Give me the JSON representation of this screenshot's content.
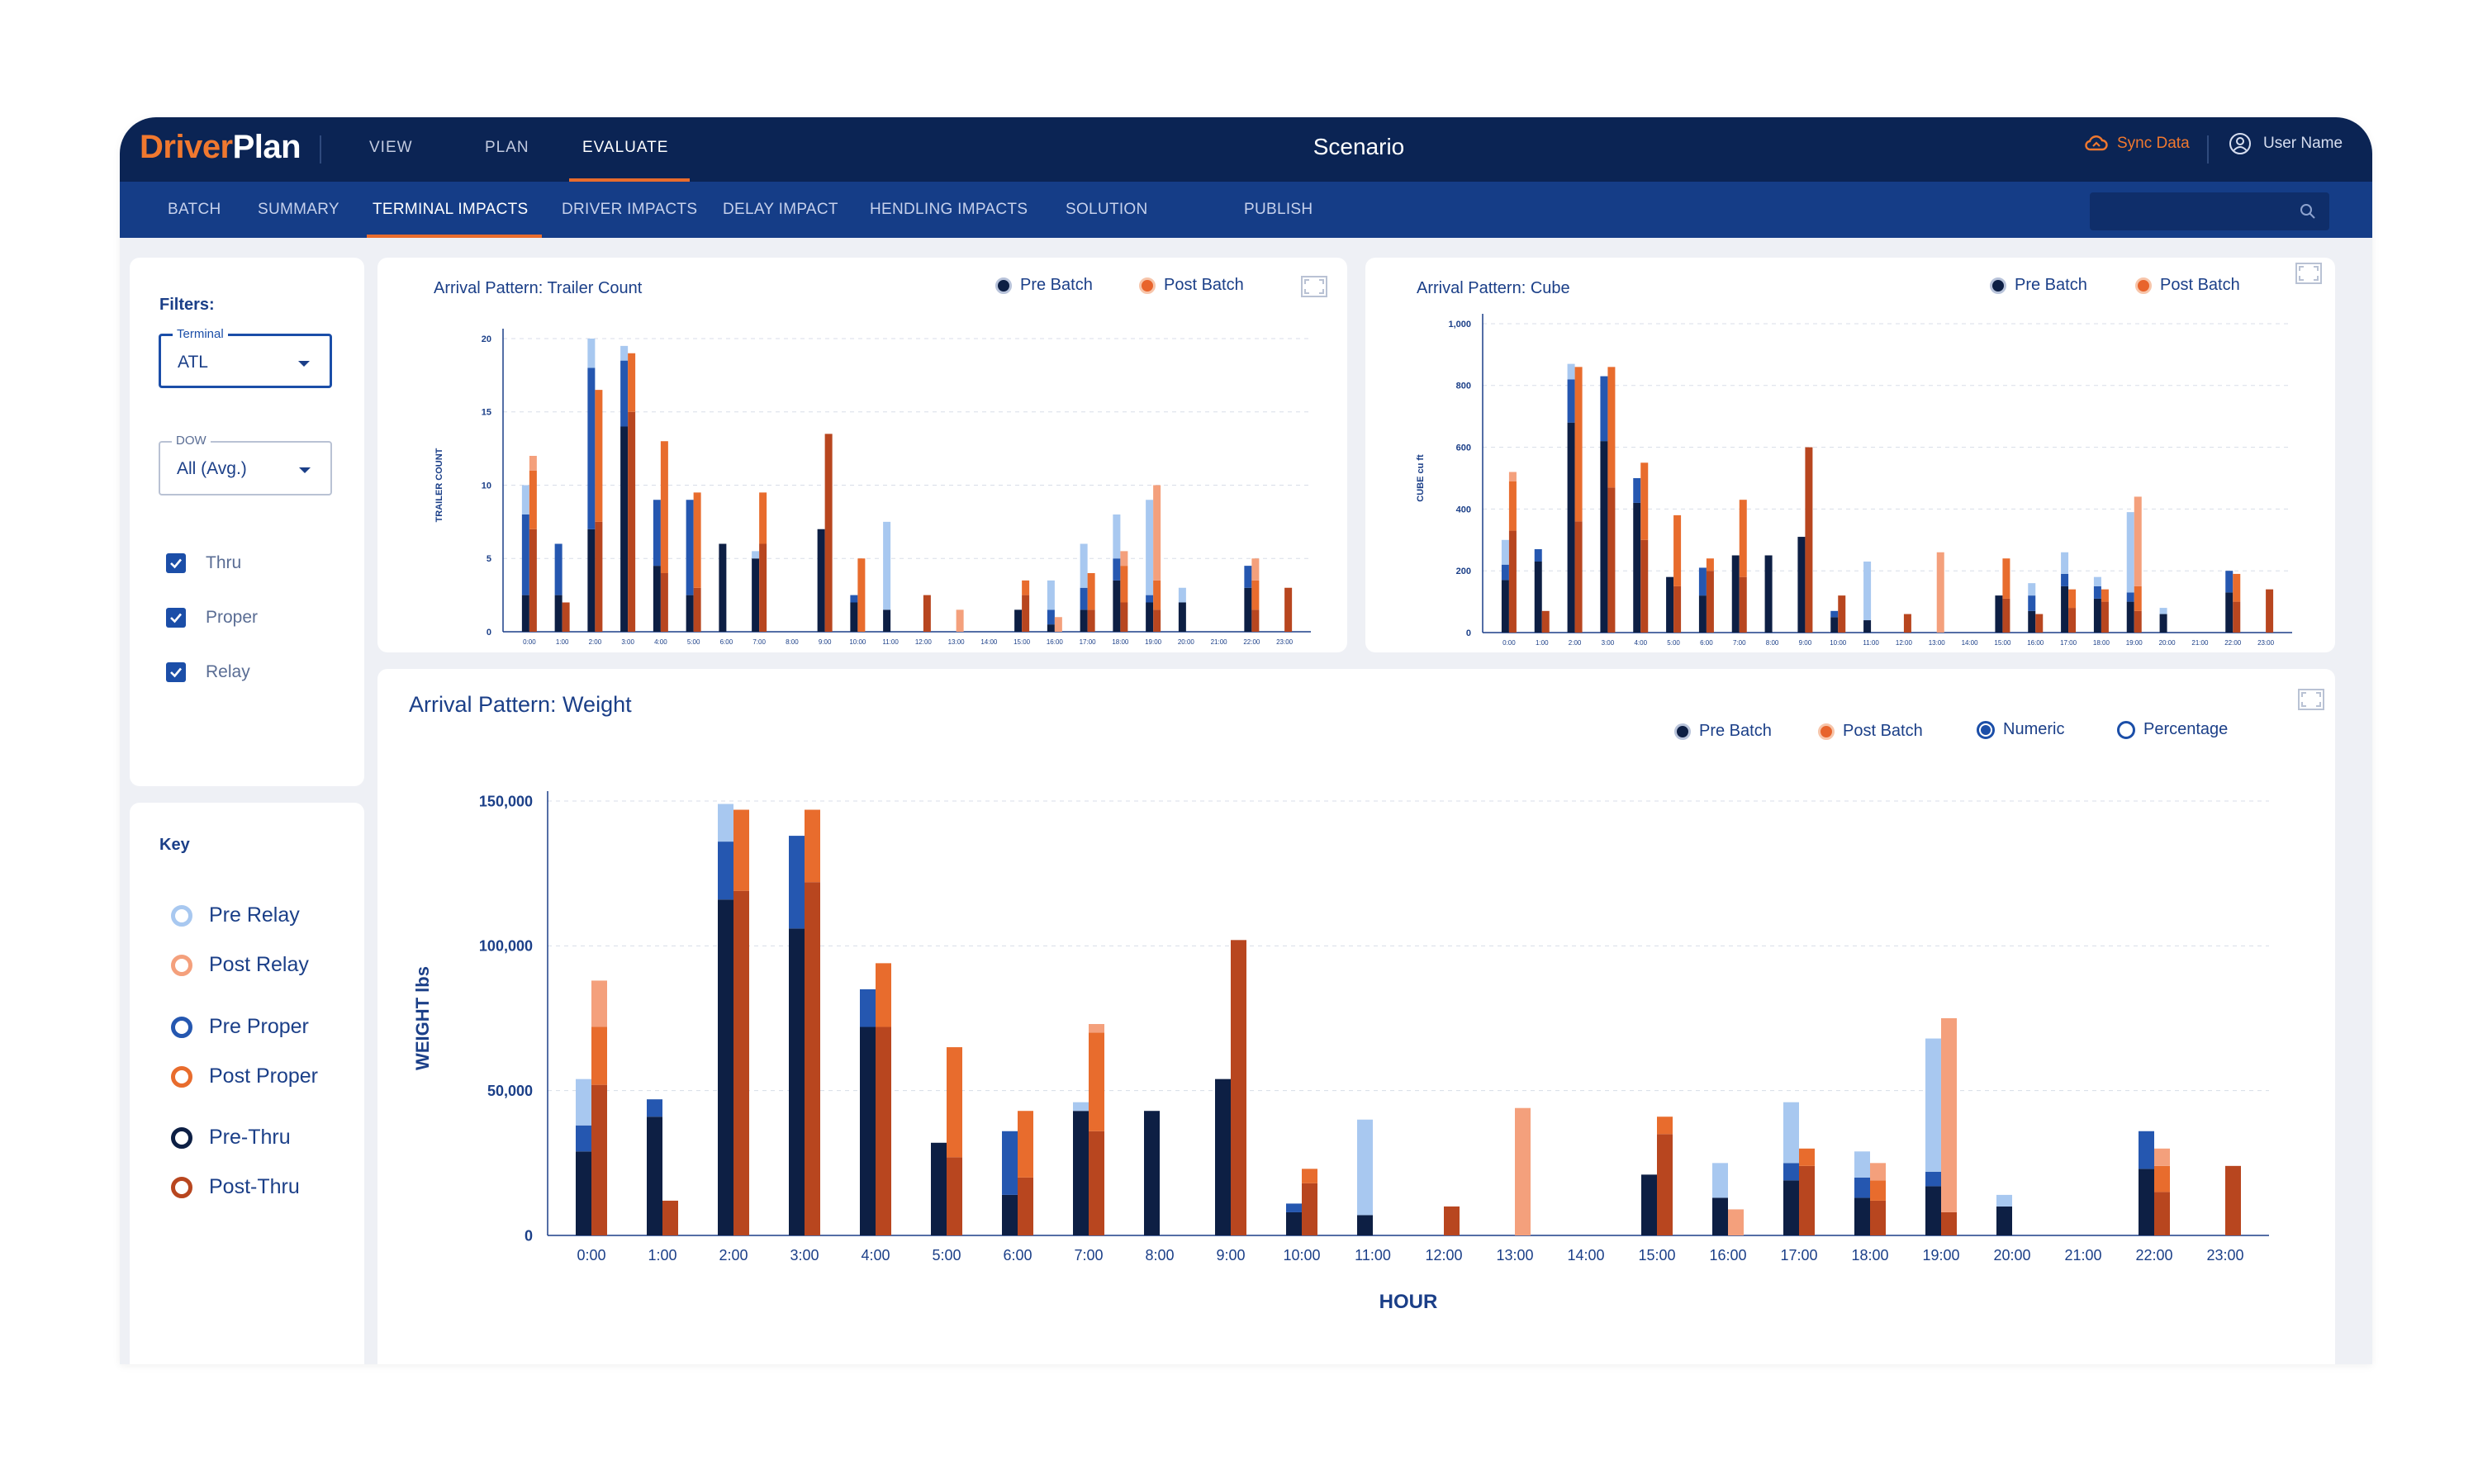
{
  "app": {
    "logo_part1": "Driver",
    "logo_part2": "Plan",
    "top_nav": [
      {
        "label": "VIEW"
      },
      {
        "label": "PLAN"
      },
      {
        "label": "EVALUATE"
      }
    ],
    "scenario_title": "Scenario",
    "sync_label": "Sync Data",
    "user_label": "User Name"
  },
  "sub_nav": [
    {
      "label": "BATCH"
    },
    {
      "label": "SUMMARY"
    },
    {
      "label": "TERMINAL IMPACTS"
    },
    {
      "label": "DRIVER IMPACTS"
    },
    {
      "label": "DELAY IMPACT"
    },
    {
      "label": "HENDLING IMPACTS"
    },
    {
      "label": "SOLUTION"
    },
    {
      "label": "PUBLISH"
    }
  ],
  "filters": {
    "title": "Filters:",
    "terminal": {
      "label": "Terminal",
      "value": "ATL"
    },
    "dow": {
      "label": "DOW",
      "value": "All (Avg.)"
    },
    "checkboxes": [
      {
        "label": "Thru",
        "checked": true
      },
      {
        "label": "Proper",
        "checked": true
      },
      {
        "label": "Relay",
        "checked": true
      }
    ]
  },
  "key": {
    "title": "Key",
    "items": [
      {
        "label": "Pre Relay",
        "color": "#a8c8f0"
      },
      {
        "label": "Post Relay",
        "color": "#f4a07c"
      },
      {
        "label": "Pre Proper",
        "color": "#2557b0"
      },
      {
        "label": "Post Proper",
        "color": "#e86c2d"
      },
      {
        "label": "Pre-Thru",
        "color": "#0d1f44"
      },
      {
        "label": "Post-Thru",
        "color": "#b8461f"
      }
    ]
  },
  "colors": {
    "pre_thru": "#0d1f44",
    "pre_proper": "#2557b0",
    "pre_relay": "#a8c8f0",
    "post_thru": "#b8461f",
    "post_proper": "#e86c2d",
    "post_relay": "#f4a07c",
    "accent": "#e86c2d",
    "nav_dark": "#0b2454",
    "nav_blue": "#153d87"
  },
  "legend": {
    "pre_batch": "Pre Batch",
    "post_batch": "Post Batch",
    "numeric": "Numeric",
    "percentage": "Percentage",
    "selected_mode": "Numeric"
  },
  "chart_data": [
    {
      "id": "trailer",
      "type": "bar",
      "title": "Arrival Pattern: Trailer Count",
      "ylabel": "TRAILER COUNT",
      "xlabel": "",
      "ylim": [
        0,
        20
      ],
      "yticks": [
        0,
        5,
        10,
        15,
        20
      ],
      "grid": true,
      "legend_placement": "top-right",
      "categories": [
        "0:00",
        "1:00",
        "2:00",
        "3:00",
        "4:00",
        "5:00",
        "6:00",
        "7:00",
        "8:00",
        "9:00",
        "10:00",
        "11:00",
        "12:00",
        "13:00",
        "14:00",
        "15:00",
        "16:00",
        "17:00",
        "18:00",
        "19:00",
        "20:00",
        "21:00",
        "22:00",
        "23:00"
      ],
      "series": [
        {
          "name": "Pre-Thru",
          "values": [
            2.5,
            2.5,
            7,
            14,
            4.5,
            2.5,
            6,
            5,
            0,
            7,
            2,
            1.5,
            0,
            0,
            0,
            1.5,
            0.5,
            1.5,
            3.5,
            2,
            2,
            0,
            3,
            0
          ]
        },
        {
          "name": "Pre Proper",
          "values": [
            5.5,
            3.5,
            11,
            4.5,
            4.5,
            6.5,
            0,
            0,
            0,
            0,
            0.5,
            0,
            0,
            0,
            0,
            0,
            1,
            1.5,
            1.5,
            0.5,
            0,
            0,
            1.5,
            0
          ]
        },
        {
          "name": "Pre Relay",
          "values": [
            2,
            0,
            2,
            1,
            0,
            0,
            0,
            0.5,
            0,
            0,
            0,
            6,
            0,
            0,
            0,
            0,
            2,
            3,
            3,
            6.5,
            1,
            0,
            0,
            0
          ]
        },
        {
          "name": "Post-Thru",
          "values": [
            7,
            2,
            7.5,
            15,
            4,
            3,
            0,
            6,
            0,
            13.5,
            0,
            0,
            2.5,
            0,
            0,
            2.5,
            0,
            1.5,
            2,
            1.5,
            0,
            0,
            1.5,
            3
          ]
        },
        {
          "name": "Post Proper",
          "values": [
            4,
            0,
            9,
            4,
            9,
            6.5,
            0,
            3.5,
            0,
            0,
            5,
            0,
            0,
            0,
            0,
            1,
            0,
            2.5,
            2.5,
            2,
            0,
            0,
            2,
            0
          ]
        },
        {
          "name": "Post Relay",
          "values": [
            1,
            0,
            0,
            0,
            0,
            0,
            0,
            0,
            0,
            0,
            0,
            0,
            0,
            1.5,
            0,
            0,
            1,
            0,
            1,
            6.5,
            0,
            0,
            1.5,
            0
          ]
        }
      ]
    },
    {
      "id": "cube",
      "type": "bar",
      "title": "Arrival Pattern: Cube",
      "ylabel": "CUBE cu ft",
      "xlabel": "",
      "ylim": [
        0,
        1000
      ],
      "yticks": [
        0,
        200,
        400,
        600,
        800,
        1000
      ],
      "ytick_labels": [
        "0",
        "200",
        "400",
        "600",
        "800",
        "1,000"
      ],
      "grid": true,
      "legend_placement": "top-right",
      "categories": [
        "0:00",
        "1:00",
        "2:00",
        "3:00",
        "4:00",
        "5:00",
        "6:00",
        "7:00",
        "8:00",
        "9:00",
        "10:00",
        "11:00",
        "12:00",
        "13:00",
        "14:00",
        "15:00",
        "16:00",
        "17:00",
        "18:00",
        "19:00",
        "20:00",
        "21:00",
        "22:00",
        "23:00"
      ],
      "series": [
        {
          "name": "Pre-Thru",
          "values": [
            170,
            230,
            680,
            620,
            420,
            180,
            120,
            250,
            250,
            310,
            50,
            40,
            0,
            0,
            0,
            120,
            70,
            150,
            110,
            100,
            60,
            0,
            130,
            0
          ]
        },
        {
          "name": "Pre Proper",
          "values": [
            50,
            40,
            140,
            210,
            80,
            0,
            90,
            0,
            0,
            0,
            20,
            0,
            0,
            0,
            0,
            0,
            50,
            40,
            40,
            30,
            0,
            0,
            70,
            0
          ]
        },
        {
          "name": "Pre Relay",
          "values": [
            80,
            0,
            50,
            0,
            0,
            0,
            0,
            0,
            0,
            0,
            0,
            190,
            0,
            0,
            0,
            0,
            40,
            70,
            30,
            260,
            20,
            0,
            0,
            0
          ]
        },
        {
          "name": "Post-Thru",
          "values": [
            330,
            70,
            360,
            470,
            300,
            150,
            200,
            180,
            0,
            600,
            120,
            0,
            60,
            0,
            0,
            110,
            60,
            80,
            100,
            70,
            0,
            0,
            100,
            140
          ]
        },
        {
          "name": "Post Proper",
          "values": [
            160,
            0,
            500,
            390,
            250,
            230,
            40,
            250,
            0,
            0,
            0,
            0,
            0,
            0,
            0,
            130,
            0,
            60,
            40,
            80,
            0,
            0,
            90,
            0
          ]
        },
        {
          "name": "Post Relay",
          "values": [
            30,
            0,
            0,
            0,
            0,
            0,
            0,
            0,
            0,
            0,
            0,
            0,
            0,
            260,
            0,
            0,
            0,
            0,
            0,
            290,
            0,
            0,
            0,
            0
          ]
        }
      ]
    },
    {
      "id": "weight",
      "type": "bar",
      "title": "Arrival Pattern: Weight",
      "ylabel": "WEIGHT lbs",
      "xlabel": "HOUR",
      "ylim": [
        0,
        150000
      ],
      "yticks": [
        0,
        50000,
        100000,
        150000
      ],
      "ytick_labels": [
        "0",
        "50,000",
        "100,000",
        "150,000"
      ],
      "grid": true,
      "legend_placement": "top-right",
      "categories": [
        "0:00",
        "1:00",
        "2:00",
        "3:00",
        "4:00",
        "5:00",
        "6:00",
        "7:00",
        "8:00",
        "9:00",
        "10:00",
        "11:00",
        "12:00",
        "13:00",
        "14:00",
        "15:00",
        "16:00",
        "17:00",
        "18:00",
        "19:00",
        "20:00",
        "21:00",
        "22:00",
        "23:00"
      ],
      "series": [
        {
          "name": "Pre-Thru",
          "values": [
            29000,
            41000,
            116000,
            106000,
            72000,
            32000,
            14000,
            43000,
            43000,
            54000,
            8000,
            7000,
            0,
            0,
            0,
            21000,
            13000,
            19000,
            13000,
            17000,
            10000,
            0,
            23000,
            0
          ]
        },
        {
          "name": "Pre Proper",
          "values": [
            9000,
            6000,
            20000,
            32000,
            13000,
            0,
            22000,
            0,
            0,
            0,
            3000,
            0,
            0,
            0,
            0,
            0,
            0,
            6000,
            7000,
            5000,
            0,
            0,
            13000,
            0
          ]
        },
        {
          "name": "Pre Relay",
          "values": [
            16000,
            0,
            13000,
            0,
            0,
            0,
            0,
            3000,
            0,
            0,
            0,
            33000,
            0,
            0,
            0,
            0,
            12000,
            21000,
            9000,
            46000,
            4000,
            0,
            0,
            0
          ]
        },
        {
          "name": "Post-Thru",
          "values": [
            52000,
            12000,
            119000,
            122000,
            72000,
            27000,
            20000,
            36000,
            0,
            102000,
            18000,
            0,
            10000,
            0,
            0,
            35000,
            0,
            24000,
            12000,
            8000,
            0,
            0,
            15000,
            24000
          ]
        },
        {
          "name": "Post Proper",
          "values": [
            20000,
            0,
            28000,
            25000,
            22000,
            38000,
            23000,
            34000,
            0,
            0,
            5000,
            0,
            0,
            0,
            0,
            6000,
            0,
            6000,
            7000,
            0,
            0,
            0,
            9000,
            0
          ]
        },
        {
          "name": "Post Relay",
          "values": [
            16000,
            0,
            0,
            0,
            0,
            0,
            0,
            3000,
            0,
            0,
            0,
            0,
            0,
            44000,
            0,
            0,
            9000,
            0,
            6000,
            67000,
            0,
            0,
            6000,
            0
          ]
        }
      ]
    }
  ]
}
